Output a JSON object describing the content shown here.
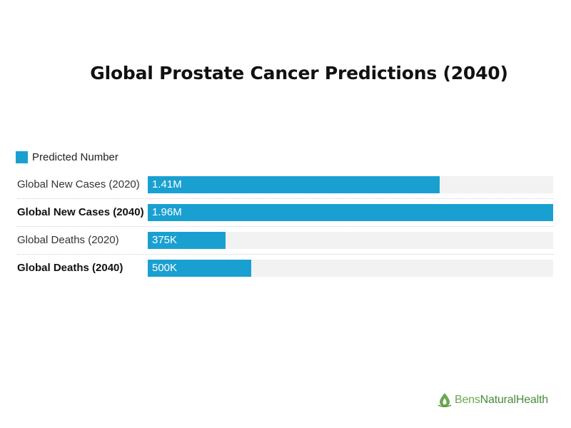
{
  "chart_data": {
    "type": "bar",
    "orientation": "horizontal",
    "title": "Global Prostate Cancer Predictions (2040)",
    "legend": {
      "entries": [
        "Predicted Number"
      ],
      "placement": "top-left"
    },
    "categories": [
      "Global New Cases (2020)",
      "Global New Cases (2040)",
      "Global Deaths (2020)",
      "Global Deaths (2040)"
    ],
    "bold_categories": [
      false,
      true,
      false,
      true
    ],
    "series": [
      {
        "name": "Predicted Number",
        "values": [
          1410000,
          1960000,
          375000,
          500000
        ],
        "labels": [
          "1.41M",
          "1.96M",
          "375K",
          "500K"
        ],
        "color": "#1aa0d0"
      }
    ],
    "xlim": [
      0,
      1960000
    ],
    "grid": false
  },
  "brand": {
    "part1": "Bens",
    "part2": "NaturalHealth",
    "icon": "leaf-drop-icon"
  }
}
